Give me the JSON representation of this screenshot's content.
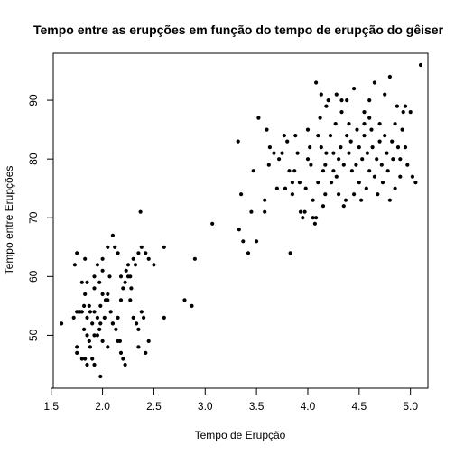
{
  "chart_data": {
    "type": "scatter",
    "title": "Tempo entre as erupções em função do tempo de erupção do gêiser",
    "xlabel": "Tempo de Erupção",
    "ylabel": "Tempo entre Erupções",
    "xlim": [
      1.52,
      5.17
    ],
    "ylim": [
      41,
      98
    ],
    "xticks": [
      "1.5",
      "2.0",
      "2.5",
      "3.0",
      "3.5",
      "4.0",
      "4.5",
      "5.0"
    ],
    "yticks": [
      "50",
      "60",
      "70",
      "80",
      "90"
    ],
    "point_color": "#000000",
    "grid": false,
    "legend": "none",
    "points": [
      [
        1.6,
        52
      ],
      [
        1.75,
        64
      ],
      [
        1.8,
        59
      ],
      [
        1.73,
        62
      ],
      [
        1.83,
        63
      ],
      [
        1.85,
        59
      ],
      [
        1.78,
        54
      ],
      [
        1.75,
        54
      ],
      [
        1.72,
        53
      ],
      [
        1.83,
        57
      ],
      [
        1.92,
        60
      ],
      [
        1.92,
        58
      ],
      [
        1.97,
        59
      ],
      [
        2.0,
        57
      ],
      [
        2.03,
        56
      ],
      [
        1.98,
        55
      ],
      [
        2.05,
        57
      ],
      [
        2.07,
        60
      ],
      [
        1.95,
        53
      ],
      [
        1.9,
        52
      ],
      [
        1.85,
        53
      ],
      [
        1.88,
        54
      ],
      [
        1.8,
        54
      ],
      [
        1.77,
        54
      ],
      [
        1.82,
        51
      ],
      [
        1.85,
        50
      ],
      [
        1.87,
        49
      ],
      [
        1.75,
        48
      ],
      [
        1.75,
        47
      ],
      [
        1.8,
        46
      ],
      [
        1.83,
        46
      ],
      [
        1.85,
        45
      ],
      [
        1.9,
        46
      ],
      [
        1.92,
        45
      ],
      [
        1.88,
        48
      ],
      [
        1.92,
        50
      ],
      [
        1.95,
        50
      ],
      [
        1.97,
        51
      ],
      [
        2.0,
        49
      ],
      [
        1.98,
        52
      ],
      [
        2.02,
        53
      ],
      [
        2.05,
        56
      ],
      [
        2.08,
        54
      ],
      [
        2.1,
        52
      ],
      [
        2.13,
        51
      ],
      [
        2.15,
        49
      ],
      [
        2.17,
        49
      ],
      [
        2.2,
        46
      ],
      [
        2.22,
        45
      ],
      [
        2.18,
        47
      ],
      [
        2.15,
        53
      ],
      [
        2.18,
        56
      ],
      [
        2.2,
        58
      ],
      [
        2.22,
        59
      ],
      [
        2.18,
        60
      ],
      [
        2.25,
        60
      ],
      [
        2.23,
        61
      ],
      [
        2.27,
        60
      ],
      [
        2.3,
        63
      ],
      [
        2.28,
        58
      ],
      [
        2.27,
        56
      ],
      [
        2.3,
        53
      ],
      [
        2.33,
        52
      ],
      [
        2.35,
        51
      ],
      [
        2.38,
        54
      ],
      [
        2.4,
        53
      ],
      [
        2.35,
        48
      ],
      [
        2.42,
        47
      ],
      [
        2.45,
        49
      ],
      [
        2.5,
        62
      ],
      [
        2.38,
        65
      ],
      [
        2.35,
        64
      ],
      [
        2.42,
        64
      ],
      [
        2.45,
        63
      ],
      [
        2.32,
        62
      ],
      [
        2.25,
        62
      ],
      [
        2.15,
        64
      ],
      [
        2.12,
        65
      ],
      [
        2.1,
        67
      ],
      [
        2.05,
        65
      ],
      [
        2.0,
        63
      ],
      [
        1.95,
        62
      ],
      [
        2.37,
        71
      ],
      [
        2.1,
        52
      ],
      [
        1.98,
        43
      ],
      [
        2.05,
        48
      ],
      [
        2.0,
        61
      ],
      [
        1.82,
        55
      ],
      [
        1.87,
        55
      ],
      [
        1.92,
        54
      ],
      [
        2.6,
        65
      ],
      [
        2.6,
        53
      ],
      [
        2.8,
        56
      ],
      [
        2.87,
        55
      ],
      [
        2.9,
        63
      ],
      [
        3.07,
        69
      ],
      [
        3.32,
        83
      ],
      [
        3.35,
        74
      ],
      [
        3.33,
        68
      ],
      [
        3.37,
        66
      ],
      [
        3.42,
        64
      ],
      [
        3.45,
        71
      ],
      [
        3.47,
        78
      ],
      [
        3.5,
        66
      ],
      [
        3.52,
        87
      ],
      [
        3.58,
        71
      ],
      [
        3.58,
        73
      ],
      [
        3.6,
        85
      ],
      [
        3.62,
        79
      ],
      [
        3.63,
        82
      ],
      [
        3.67,
        81
      ],
      [
        3.7,
        75
      ],
      [
        3.72,
        80
      ],
      [
        3.75,
        81
      ],
      [
        3.77,
        84
      ],
      [
        3.78,
        75
      ],
      [
        3.8,
        83
      ],
      [
        3.82,
        78
      ],
      [
        3.83,
        64
      ],
      [
        3.85,
        74
      ],
      [
        3.85,
        76
      ],
      [
        3.87,
        78
      ],
      [
        3.88,
        84
      ],
      [
        3.9,
        81
      ],
      [
        3.92,
        76
      ],
      [
        3.93,
        71
      ],
      [
        3.95,
        70
      ],
      [
        3.97,
        71
      ],
      [
        3.98,
        75
      ],
      [
        4.0,
        80
      ],
      [
        4.0,
        85
      ],
      [
        4.02,
        82
      ],
      [
        4.03,
        79
      ],
      [
        4.05,
        73
      ],
      [
        4.05,
        70
      ],
      [
        4.07,
        69
      ],
      [
        4.08,
        70
      ],
      [
        4.1,
        76
      ],
      [
        4.1,
        84
      ],
      [
        4.12,
        87
      ],
      [
        4.13,
        82
      ],
      [
        4.15,
        78
      ],
      [
        4.15,
        72
      ],
      [
        4.17,
        74
      ],
      [
        4.17,
        79
      ],
      [
        4.18,
        81
      ],
      [
        4.2,
        90
      ],
      [
        4.22,
        84
      ],
      [
        4.23,
        76
      ],
      [
        4.25,
        78
      ],
      [
        4.25,
        81
      ],
      [
        4.27,
        86
      ],
      [
        4.28,
        77
      ],
      [
        4.3,
        74
      ],
      [
        4.3,
        80
      ],
      [
        4.32,
        82
      ],
      [
        4.33,
        88
      ],
      [
        4.35,
        79
      ],
      [
        4.35,
        72
      ],
      [
        4.37,
        73
      ],
      [
        4.38,
        84
      ],
      [
        4.4,
        81
      ],
      [
        4.4,
        86
      ],
      [
        4.42,
        83
      ],
      [
        4.43,
        78
      ],
      [
        4.45,
        74
      ],
      [
        4.45,
        92
      ],
      [
        4.47,
        79
      ],
      [
        4.48,
        85
      ],
      [
        4.5,
        82
      ],
      [
        4.5,
        76
      ],
      [
        4.52,
        73
      ],
      [
        4.53,
        80
      ],
      [
        4.55,
        84
      ],
      [
        4.55,
        88
      ],
      [
        4.57,
        75
      ],
      [
        4.58,
        81
      ],
      [
        4.6,
        90
      ],
      [
        4.6,
        78
      ],
      [
        4.62,
        85
      ],
      [
        4.63,
        82
      ],
      [
        4.65,
        77
      ],
      [
        4.65,
        93
      ],
      [
        4.67,
        80
      ],
      [
        4.68,
        74
      ],
      [
        4.7,
        86
      ],
      [
        4.7,
        83
      ],
      [
        4.72,
        79
      ],
      [
        4.73,
        76
      ],
      [
        4.75,
        84
      ],
      [
        4.75,
        91
      ],
      [
        4.77,
        81
      ],
      [
        4.78,
        78
      ],
      [
        4.8,
        94
      ],
      [
        4.8,
        73
      ],
      [
        4.82,
        83
      ],
      [
        4.83,
        80
      ],
      [
        4.85,
        86
      ],
      [
        4.85,
        75
      ],
      [
        4.87,
        89
      ],
      [
        4.88,
        82
      ],
      [
        4.9,
        77
      ],
      [
        4.92,
        85
      ],
      [
        4.93,
        88
      ],
      [
        4.95,
        82
      ],
      [
        4.97,
        79
      ],
      [
        5.0,
        88
      ],
      [
        5.02,
        77
      ],
      [
        5.05,
        76
      ],
      [
        5.1,
        96
      ],
      [
        4.08,
        93
      ],
      [
        4.13,
        91
      ],
      [
        4.18,
        89
      ],
      [
        4.28,
        91
      ],
      [
        4.33,
        90
      ],
      [
        4.38,
        90
      ],
      [
        4.55,
        86
      ],
      [
        4.6,
        87
      ],
      [
        4.95,
        89
      ],
      [
        4.9,
        80
      ]
    ]
  }
}
